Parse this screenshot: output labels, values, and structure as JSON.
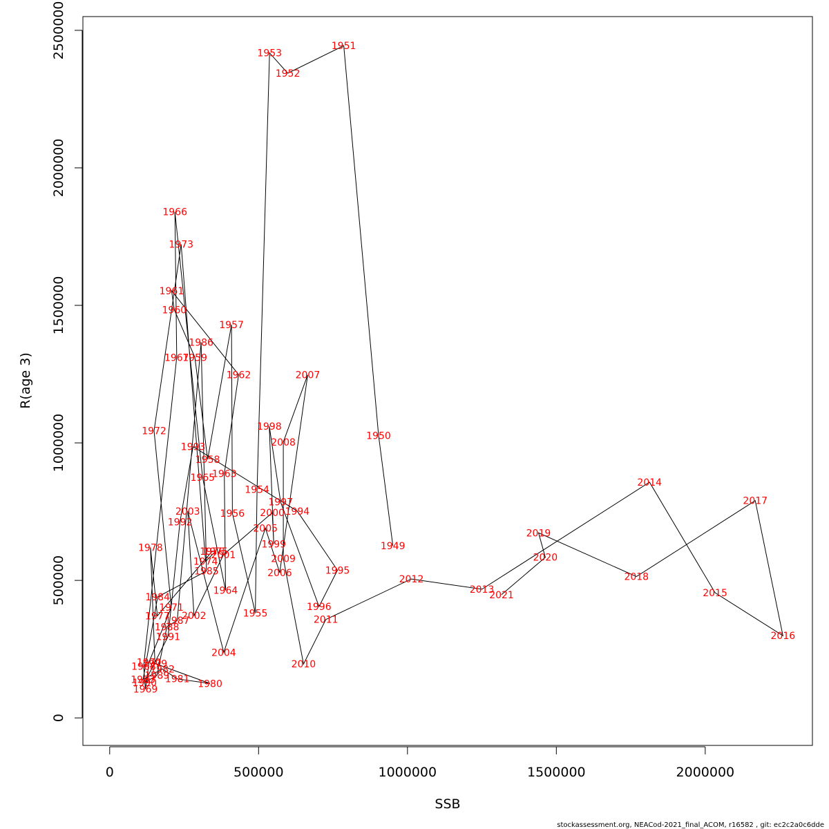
{
  "chart_data": {
    "type": "line",
    "xlabel": "SSB",
    "ylabel": "R(age 3)",
    "xlim": [
      -90000,
      2360000
    ],
    "ylim": [
      -100000,
      2550000
    ],
    "x_ticks": [
      0,
      500000,
      1000000,
      1500000,
      2000000
    ],
    "x_tick_labels": [
      "0",
      "500000",
      "1000000",
      "1500000",
      "2000000"
    ],
    "y_ticks": [
      0,
      500000,
      1000000,
      1500000,
      2000000,
      2500000
    ],
    "y_tick_labels": [
      "0",
      "500000",
      "1000000",
      "1500000",
      "2000000",
      "2500000"
    ],
    "grid": false,
    "line_color": "#000000",
    "label_color": "#ff0000",
    "points": [
      {
        "year": "1949",
        "x": 951000,
        "y": 626000
      },
      {
        "year": "1950",
        "x": 903000,
        "y": 1027000
      },
      {
        "year": "1951",
        "x": 786000,
        "y": 2444000
      },
      {
        "year": "1952",
        "x": 598000,
        "y": 2344000
      },
      {
        "year": "1953",
        "x": 537000,
        "y": 2418000
      },
      {
        "year": "1954",
        "x": 495000,
        "y": 831000
      },
      {
        "year": "1955",
        "x": 489000,
        "y": 381000
      },
      {
        "year": "1956",
        "x": 412000,
        "y": 744000
      },
      {
        "year": "1957",
        "x": 409000,
        "y": 1430000
      },
      {
        "year": "1958",
        "x": 329000,
        "y": 940000
      },
      {
        "year": "1959",
        "x": 286000,
        "y": 1311000
      },
      {
        "year": "1960",
        "x": 217000,
        "y": 1484000
      },
      {
        "year": "1961",
        "x": 208000,
        "y": 1553000
      },
      {
        "year": "1962",
        "x": 433000,
        "y": 1248000
      },
      {
        "year": "1963",
        "x": 385000,
        "y": 888000
      },
      {
        "year": "1964",
        "x": 389000,
        "y": 464000
      },
      {
        "year": "1965",
        "x": 312000,
        "y": 874000
      },
      {
        "year": "1966",
        "x": 219000,
        "y": 1840000
      },
      {
        "year": "1967",
        "x": 225000,
        "y": 1311000
      },
      {
        "year": "1968",
        "x": 114000,
        "y": 187000
      },
      {
        "year": "1969",
        "x": 120000,
        "y": 105000
      },
      {
        "year": "1970",
        "x": 132000,
        "y": 203000
      },
      {
        "year": "1971",
        "x": 207000,
        "y": 402000
      },
      {
        "year": "1972",
        "x": 149000,
        "y": 1044000
      },
      {
        "year": "1973",
        "x": 240000,
        "y": 1722000
      },
      {
        "year": "1974",
        "x": 322000,
        "y": 569000
      },
      {
        "year": "1975",
        "x": 356000,
        "y": 606000
      },
      {
        "year": "1976",
        "x": 344000,
        "y": 606000
      },
      {
        "year": "1977",
        "x": 160000,
        "y": 371000
      },
      {
        "year": "1978",
        "x": 137000,
        "y": 620000
      },
      {
        "year": "1979",
        "x": 152000,
        "y": 198000
      },
      {
        "year": "1980",
        "x": 337000,
        "y": 125000
      },
      {
        "year": "1981",
        "x": 227000,
        "y": 142000
      },
      {
        "year": "1982",
        "x": 177000,
        "y": 178000
      },
      {
        "year": "1983",
        "x": 112000,
        "y": 140000
      },
      {
        "year": "1984",
        "x": 161000,
        "y": 440000
      },
      {
        "year": "1985",
        "x": 325000,
        "y": 534000
      },
      {
        "year": "1986",
        "x": 307000,
        "y": 1366000
      },
      {
        "year": "1987",
        "x": 227000,
        "y": 355000
      },
      {
        "year": "1988",
        "x": 192000,
        "y": 331000
      },
      {
        "year": "1989",
        "x": 159000,
        "y": 155000
      },
      {
        "year": "1990",
        "x": 117000,
        "y": 128000
      },
      {
        "year": "1991",
        "x": 196000,
        "y": 296000
      },
      {
        "year": "1992",
        "x": 236000,
        "y": 712000
      },
      {
        "year": "1993",
        "x": 280000,
        "y": 986000
      },
      {
        "year": "1994",
        "x": 630000,
        "y": 752000
      },
      {
        "year": "1995",
        "x": 765000,
        "y": 537000
      },
      {
        "year": "1996",
        "x": 703000,
        "y": 405000
      },
      {
        "year": "1997",
        "x": 574000,
        "y": 785000
      },
      {
        "year": "1998",
        "x": 536000,
        "y": 1061000
      },
      {
        "year": "1999",
        "x": 551000,
        "y": 632000
      },
      {
        "year": "2000",
        "x": 546000,
        "y": 746000
      },
      {
        "year": "2001",
        "x": 382000,
        "y": 593000
      },
      {
        "year": "2002",
        "x": 283000,
        "y": 372000
      },
      {
        "year": "2003",
        "x": 262000,
        "y": 752000
      },
      {
        "year": "2004",
        "x": 383000,
        "y": 238000
      },
      {
        "year": "2005",
        "x": 523000,
        "y": 690000
      },
      {
        "year": "2006",
        "x": 571000,
        "y": 528000
      },
      {
        "year": "2007",
        "x": 665000,
        "y": 1247000
      },
      {
        "year": "2008",
        "x": 583000,
        "y": 1003000
      },
      {
        "year": "2009",
        "x": 583000,
        "y": 580000
      },
      {
        "year": "2010",
        "x": 651000,
        "y": 196000
      },
      {
        "year": "2011",
        "x": 726000,
        "y": 358000
      },
      {
        "year": "2012",
        "x": 1013000,
        "y": 505000
      },
      {
        "year": "2013",
        "x": 1250000,
        "y": 468000
      },
      {
        "year": "2014",
        "x": 1813000,
        "y": 857000
      },
      {
        "year": "2015",
        "x": 2033000,
        "y": 455000
      },
      {
        "year": "2016",
        "x": 2261000,
        "y": 299000
      },
      {
        "year": "2017",
        "x": 2168000,
        "y": 790000
      },
      {
        "year": "2018",
        "x": 1769000,
        "y": 514000
      },
      {
        "year": "2019",
        "x": 1440000,
        "y": 673000
      },
      {
        "year": "2020",
        "x": 1463000,
        "y": 584000
      },
      {
        "year": "2021",
        "x": 1316000,
        "y": 448000
      }
    ]
  },
  "footer": "stockassessment.org, NEACod-2021_final_ACOM, r16582 , git: ec2c2a0c6dde"
}
